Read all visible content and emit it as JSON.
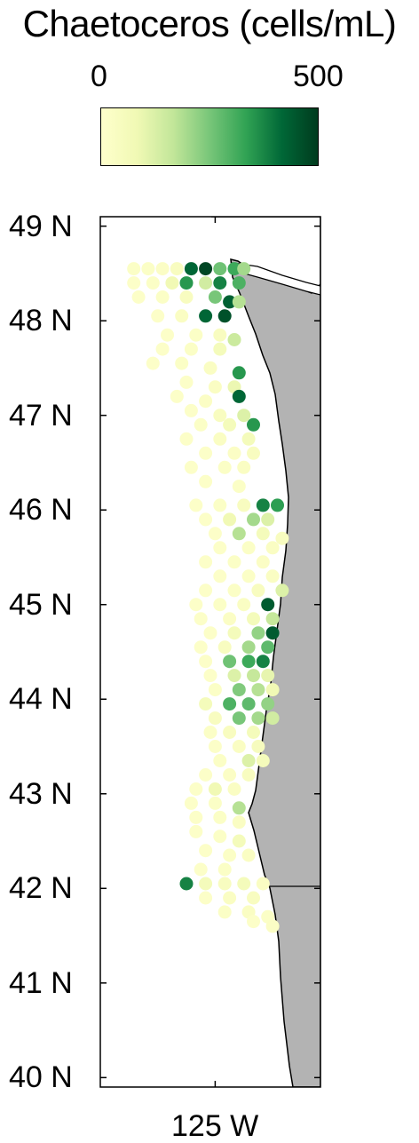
{
  "title": "Chaetoceros (cells/mL)",
  "colorbar": {
    "min_label": "0",
    "max_label": "500",
    "colors": [
      "#ffffcc",
      "#f0f9b4",
      "#c2e699",
      "#78c679",
      "#31a354",
      "#006837",
      "#003b1e"
    ]
  },
  "axes": {
    "yticks": [
      "49 N",
      "48 N",
      "47 N",
      "46 N",
      "45 N",
      "44 N",
      "43 N",
      "42 N",
      "41 N",
      "40 N"
    ],
    "xtick": "125 W"
  },
  "colors": {
    "land": "#b3b3b3",
    "ocean": "#ffffff",
    "coast": "#000000"
  },
  "chart_data": {
    "type": "scatter",
    "title": "Chaetoceros (cells/mL)",
    "xlabel": "",
    "ylabel": "",
    "xlim": [
      -126.2,
      -123.9
    ],
    "ylim": [
      39.9,
      49.1
    ],
    "clim": [
      0,
      500
    ],
    "points": [
      {
        "lon": -125.85,
        "lat": 48.55,
        "v": 20
      },
      {
        "lon": -125.7,
        "lat": 48.55,
        "v": 20
      },
      {
        "lon": -125.55,
        "lat": 48.55,
        "v": 25
      },
      {
        "lon": -125.4,
        "lat": 48.55,
        "v": 40
      },
      {
        "lon": -125.25,
        "lat": 48.55,
        "v": 420
      },
      {
        "lon": -125.1,
        "lat": 48.55,
        "v": 480
      },
      {
        "lon": -124.95,
        "lat": 48.55,
        "v": 260
      },
      {
        "lon": -124.8,
        "lat": 48.55,
        "v": 320
      },
      {
        "lon": -124.7,
        "lat": 48.55,
        "v": 200
      },
      {
        "lon": -125.85,
        "lat": 48.4,
        "v": 15
      },
      {
        "lon": -125.65,
        "lat": 48.4,
        "v": 20
      },
      {
        "lon": -125.45,
        "lat": 48.4,
        "v": 80
      },
      {
        "lon": -125.3,
        "lat": 48.4,
        "v": 350
      },
      {
        "lon": -125.1,
        "lat": 48.4,
        "v": 140
      },
      {
        "lon": -124.95,
        "lat": 48.4,
        "v": 380
      },
      {
        "lon": -124.75,
        "lat": 48.4,
        "v": 300
      },
      {
        "lon": -125.8,
        "lat": 48.25,
        "v": 15
      },
      {
        "lon": -125.55,
        "lat": 48.25,
        "v": 20
      },
      {
        "lon": -125.3,
        "lat": 48.25,
        "v": 40
      },
      {
        "lon": -125.0,
        "lat": 48.25,
        "v": 250
      },
      {
        "lon": -124.85,
        "lat": 48.2,
        "v": 430
      },
      {
        "lon": -124.75,
        "lat": 48.2,
        "v": 180
      },
      {
        "lon": -125.6,
        "lat": 48.05,
        "v": 15
      },
      {
        "lon": -125.35,
        "lat": 48.05,
        "v": 30
      },
      {
        "lon": -125.1,
        "lat": 48.05,
        "v": 420
      },
      {
        "lon": -124.9,
        "lat": 48.05,
        "v": 460
      },
      {
        "lon": -125.5,
        "lat": 47.85,
        "v": 15
      },
      {
        "lon": -125.2,
        "lat": 47.85,
        "v": 20
      },
      {
        "lon": -124.95,
        "lat": 47.85,
        "v": 40
      },
      {
        "lon": -124.8,
        "lat": 47.8,
        "v": 150
      },
      {
        "lon": -125.55,
        "lat": 47.7,
        "v": 15
      },
      {
        "lon": -125.25,
        "lat": 47.7,
        "v": 20
      },
      {
        "lon": -124.95,
        "lat": 47.7,
        "v": 60
      },
      {
        "lon": -125.65,
        "lat": 47.55,
        "v": 15
      },
      {
        "lon": -125.35,
        "lat": 47.55,
        "v": 20
      },
      {
        "lon": -125.05,
        "lat": 47.5,
        "v": 30
      },
      {
        "lon": -124.75,
        "lat": 47.45,
        "v": 350
      },
      {
        "lon": -125.3,
        "lat": 47.35,
        "v": 15
      },
      {
        "lon": -125.0,
        "lat": 47.3,
        "v": 30
      },
      {
        "lon": -124.8,
        "lat": 47.3,
        "v": 90
      },
      {
        "lon": -125.4,
        "lat": 47.2,
        "v": 15
      },
      {
        "lon": -125.1,
        "lat": 47.15,
        "v": 25
      },
      {
        "lon": -124.75,
        "lat": 47.2,
        "v": 420
      },
      {
        "lon": -125.25,
        "lat": 47.05,
        "v": 15
      },
      {
        "lon": -124.95,
        "lat": 47.0,
        "v": 40
      },
      {
        "lon": -124.7,
        "lat": 47.0,
        "v": 120
      },
      {
        "lon": -125.15,
        "lat": 46.9,
        "v": 20
      },
      {
        "lon": -124.85,
        "lat": 46.9,
        "v": 60
      },
      {
        "lon": -124.6,
        "lat": 46.9,
        "v": 350
      },
      {
        "lon": -125.3,
        "lat": 46.75,
        "v": 15
      },
      {
        "lon": -124.95,
        "lat": 46.75,
        "v": 30
      },
      {
        "lon": -124.65,
        "lat": 46.75,
        "v": 60
      },
      {
        "lon": -125.1,
        "lat": 46.6,
        "v": 15
      },
      {
        "lon": -124.8,
        "lat": 46.6,
        "v": 25
      },
      {
        "lon": -124.6,
        "lat": 46.6,
        "v": 40
      },
      {
        "lon": -125.25,
        "lat": 46.45,
        "v": 15
      },
      {
        "lon": -124.9,
        "lat": 46.45,
        "v": 20
      },
      {
        "lon": -124.7,
        "lat": 46.45,
        "v": 30
      },
      {
        "lon": -125.1,
        "lat": 46.3,
        "v": 15
      },
      {
        "lon": -124.75,
        "lat": 46.25,
        "v": 20
      },
      {
        "lon": -125.2,
        "lat": 46.05,
        "v": 15
      },
      {
        "lon": -124.95,
        "lat": 46.05,
        "v": 20
      },
      {
        "lon": -124.7,
        "lat": 46.05,
        "v": 40
      },
      {
        "lon": -124.5,
        "lat": 46.05,
        "v": 380
      },
      {
        "lon": -124.35,
        "lat": 46.05,
        "v": 340
      },
      {
        "lon": -125.1,
        "lat": 45.9,
        "v": 15
      },
      {
        "lon": -124.85,
        "lat": 45.9,
        "v": 80
      },
      {
        "lon": -124.6,
        "lat": 45.9,
        "v": 200
      },
      {
        "lon": -124.45,
        "lat": 45.9,
        "v": 120
      },
      {
        "lon": -125.0,
        "lat": 45.75,
        "v": 15
      },
      {
        "lon": -124.75,
        "lat": 45.75,
        "v": 180
      },
      {
        "lon": -124.5,
        "lat": 45.75,
        "v": 60
      },
      {
        "lon": -124.3,
        "lat": 45.7,
        "v": 40
      },
      {
        "lon": -124.95,
        "lat": 45.6,
        "v": 15
      },
      {
        "lon": -124.65,
        "lat": 45.6,
        "v": 20
      },
      {
        "lon": -124.4,
        "lat": 45.6,
        "v": 30
      },
      {
        "lon": -125.1,
        "lat": 45.45,
        "v": 15
      },
      {
        "lon": -124.8,
        "lat": 45.45,
        "v": 20
      },
      {
        "lon": -124.5,
        "lat": 45.45,
        "v": 25
      },
      {
        "lon": -124.95,
        "lat": 45.3,
        "v": 15
      },
      {
        "lon": -124.65,
        "lat": 45.3,
        "v": 20
      },
      {
        "lon": -124.4,
        "lat": 45.3,
        "v": 30
      },
      {
        "lon": -125.1,
        "lat": 45.15,
        "v": 15
      },
      {
        "lon": -124.8,
        "lat": 45.15,
        "v": 20
      },
      {
        "lon": -124.55,
        "lat": 45.15,
        "v": 40
      },
      {
        "lon": -124.3,
        "lat": 45.15,
        "v": 120
      },
      {
        "lon": -125.2,
        "lat": 45.0,
        "v": 15
      },
      {
        "lon": -124.95,
        "lat": 45.0,
        "v": 20
      },
      {
        "lon": -124.7,
        "lat": 45.0,
        "v": 30
      },
      {
        "lon": -124.45,
        "lat": 45.0,
        "v": 440
      },
      {
        "lon": -125.15,
        "lat": 44.85,
        "v": 15
      },
      {
        "lon": -124.85,
        "lat": 44.85,
        "v": 25
      },
      {
        "lon": -124.6,
        "lat": 44.85,
        "v": 60
      },
      {
        "lon": -124.4,
        "lat": 44.85,
        "v": 160
      },
      {
        "lon": -125.05,
        "lat": 44.7,
        "v": 15
      },
      {
        "lon": -124.8,
        "lat": 44.7,
        "v": 60
      },
      {
        "lon": -124.55,
        "lat": 44.7,
        "v": 220
      },
      {
        "lon": -124.4,
        "lat": 44.7,
        "v": 440
      },
      {
        "lon": -125.15,
        "lat": 44.55,
        "v": 15
      },
      {
        "lon": -124.9,
        "lat": 44.55,
        "v": 40
      },
      {
        "lon": -124.65,
        "lat": 44.55,
        "v": 200
      },
      {
        "lon": -124.45,
        "lat": 44.55,
        "v": 280
      },
      {
        "lon": -125.1,
        "lat": 44.4,
        "v": 15
      },
      {
        "lon": -124.85,
        "lat": 44.4,
        "v": 260
      },
      {
        "lon": -124.65,
        "lat": 44.4,
        "v": 320
      },
      {
        "lon": -124.5,
        "lat": 44.4,
        "v": 380
      },
      {
        "lon": -125.05,
        "lat": 44.25,
        "v": 15
      },
      {
        "lon": -124.8,
        "lat": 44.25,
        "v": 120
      },
      {
        "lon": -124.6,
        "lat": 44.25,
        "v": 160
      },
      {
        "lon": -124.45,
        "lat": 44.25,
        "v": 100
      },
      {
        "lon": -125.0,
        "lat": 44.1,
        "v": 20
      },
      {
        "lon": -124.75,
        "lat": 44.1,
        "v": 240
      },
      {
        "lon": -124.55,
        "lat": 44.1,
        "v": 180
      },
      {
        "lon": -124.4,
        "lat": 44.1,
        "v": 80
      },
      {
        "lon": -125.1,
        "lat": 43.95,
        "v": 60
      },
      {
        "lon": -124.85,
        "lat": 43.95,
        "v": 300
      },
      {
        "lon": -124.65,
        "lat": 43.95,
        "v": 280
      },
      {
        "lon": -124.45,
        "lat": 43.95,
        "v": 220
      },
      {
        "lon": -125.0,
        "lat": 43.8,
        "v": 40
      },
      {
        "lon": -124.75,
        "lat": 43.8,
        "v": 250
      },
      {
        "lon": -124.55,
        "lat": 43.8,
        "v": 200
      },
      {
        "lon": -124.4,
        "lat": 43.8,
        "v": 140
      },
      {
        "lon": -125.05,
        "lat": 43.65,
        "v": 20
      },
      {
        "lon": -124.85,
        "lat": 43.65,
        "v": 40
      },
      {
        "lon": -124.6,
        "lat": 43.65,
        "v": 60
      },
      {
        "lon": -125.0,
        "lat": 43.5,
        "v": 15
      },
      {
        "lon": -124.75,
        "lat": 43.5,
        "v": 30
      },
      {
        "lon": -124.55,
        "lat": 43.5,
        "v": 50
      },
      {
        "lon": -124.95,
        "lat": 43.35,
        "v": 20
      },
      {
        "lon": -124.65,
        "lat": 43.35,
        "v": 120
      },
      {
        "lon": -124.5,
        "lat": 43.35,
        "v": 60
      },
      {
        "lon": -125.1,
        "lat": 43.2,
        "v": 15
      },
      {
        "lon": -124.85,
        "lat": 43.2,
        "v": 25
      },
      {
        "lon": -124.65,
        "lat": 43.2,
        "v": 40
      },
      {
        "lon": -125.2,
        "lat": 43.05,
        "v": 15
      },
      {
        "lon": -125.0,
        "lat": 43.05,
        "v": 80
      },
      {
        "lon": -124.8,
        "lat": 43.05,
        "v": 30
      },
      {
        "lon": -125.25,
        "lat": 42.9,
        "v": 15
      },
      {
        "lon": -125.0,
        "lat": 42.9,
        "v": 20
      },
      {
        "lon": -124.75,
        "lat": 42.85,
        "v": 180
      },
      {
        "lon": -125.2,
        "lat": 42.75,
        "v": 15
      },
      {
        "lon": -124.95,
        "lat": 42.75,
        "v": 20
      },
      {
        "lon": -124.75,
        "lat": 42.7,
        "v": 30
      },
      {
        "lon": -125.2,
        "lat": 42.6,
        "v": 15
      },
      {
        "lon": -124.95,
        "lat": 42.55,
        "v": 20
      },
      {
        "lon": -124.75,
        "lat": 42.5,
        "v": 60
      },
      {
        "lon": -125.1,
        "lat": 42.4,
        "v": 15
      },
      {
        "lon": -124.85,
        "lat": 42.35,
        "v": 20
      },
      {
        "lon": -124.65,
        "lat": 42.35,
        "v": 30
      },
      {
        "lon": -125.15,
        "lat": 42.2,
        "v": 15
      },
      {
        "lon": -124.9,
        "lat": 42.2,
        "v": 20
      },
      {
        "lon": -125.3,
        "lat": 42.05,
        "v": 380
      },
      {
        "lon": -125.1,
        "lat": 42.05,
        "v": 60
      },
      {
        "lon": -124.9,
        "lat": 42.05,
        "v": 40
      },
      {
        "lon": -124.7,
        "lat": 42.05,
        "v": 60
      },
      {
        "lon": -124.5,
        "lat": 42.05,
        "v": 30
      },
      {
        "lon": -125.1,
        "lat": 41.9,
        "v": 15
      },
      {
        "lon": -124.85,
        "lat": 41.9,
        "v": 30
      },
      {
        "lon": -124.6,
        "lat": 41.9,
        "v": 40
      },
      {
        "lon": -124.9,
        "lat": 41.75,
        "v": 20
      },
      {
        "lon": -124.65,
        "lat": 41.75,
        "v": 30
      },
      {
        "lon": -124.45,
        "lat": 41.7,
        "v": 20
      },
      {
        "lon": -124.6,
        "lat": 41.65,
        "v": 15
      },
      {
        "lon": -124.4,
        "lat": 41.6,
        "v": 25
      }
    ]
  }
}
